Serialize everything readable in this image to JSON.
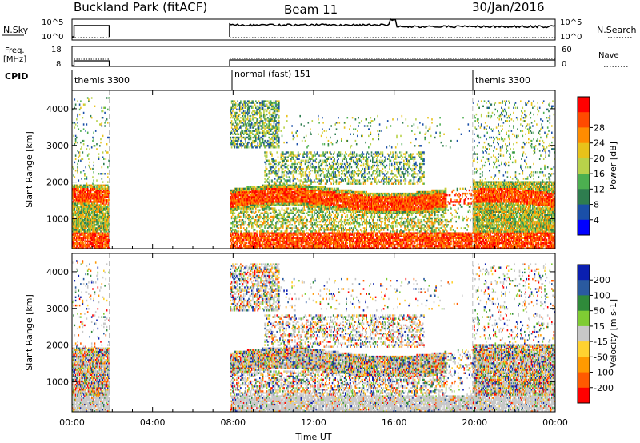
{
  "header": {
    "station": "Buckland Park (fitACF)",
    "beam": "Beam 11",
    "date": "30/Jan/2016"
  },
  "nsky_panel": {
    "left_label": "N.Sky",
    "right_label": "N.Search",
    "left_ticks": [
      "10^5",
      "10^0"
    ],
    "right_ticks": [
      "10^5",
      "10^0"
    ]
  },
  "freq_panel": {
    "left_label_1": "Freq.",
    "left_label_2": "[MHz]",
    "right_label": "Nave",
    "left_ticks": [
      "18",
      "8"
    ],
    "right_ticks": [
      "60",
      "0"
    ]
  },
  "cpid_row": {
    "label": "CPID",
    "segments": [
      {
        "name": "themis 3300",
        "start_hour": 0.0
      },
      {
        "name": "normal (fast) 151",
        "start_hour": 7.83
      },
      {
        "name": "themis 3300",
        "start_hour": 19.9
      }
    ]
  },
  "chart_data": [
    {
      "type": "heatmap",
      "title": "",
      "xlabel": "Time UT",
      "ylabel": "Slant Range [km]",
      "xlim": [
        0,
        24
      ],
      "ylim": [
        180,
        4500
      ],
      "x_ticks": [
        "00:00",
        "04:00",
        "08:00",
        "12:00",
        "16:00",
        "20:00",
        "00:00"
      ],
      "y_ticks": [
        1000,
        2000,
        3000,
        4000
      ],
      "colorbar": {
        "label": "Power [dB]",
        "ticks": [
          "4",
          "8",
          "12",
          "16",
          "20",
          "24",
          "28"
        ],
        "colors": [
          "#0000ff",
          "#1a4fa8",
          "#2e7d4f",
          "#4caf50",
          "#b8d24a",
          "#e8c21a",
          "#ff8c00",
          "#ff4a00",
          "#ff0000"
        ]
      }
    },
    {
      "type": "heatmap",
      "title": "",
      "xlabel": "Time UT",
      "ylabel": "Slant Range [km]",
      "xlim": [
        0,
        24
      ],
      "ylim": [
        180,
        4500
      ],
      "x_ticks": [
        "00:00",
        "04:00",
        "08:00",
        "12:00",
        "16:00",
        "20:00",
        "00:00"
      ],
      "y_ticks": [
        1000,
        2000,
        3000,
        4000
      ],
      "colorbar": {
        "label": "Velocity [m s-1]",
        "ticks": [
          "200",
          "100",
          "50",
          "15",
          "-15",
          "-50",
          "-100",
          "-200"
        ],
        "colors": [
          "#0a1fb0",
          "#2a5aa0",
          "#2f8a3a",
          "#7fcc33",
          "#c8c8c8",
          "#ffd230",
          "#ff9a00",
          "#ff5a00",
          "#ff0000"
        ]
      }
    }
  ]
}
